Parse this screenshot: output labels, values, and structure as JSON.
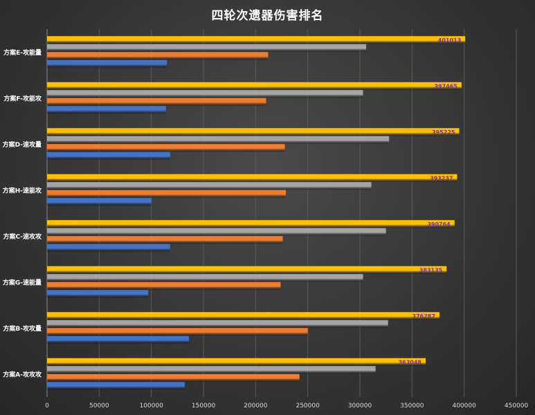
{
  "chart_data": {
    "type": "bar",
    "orientation": "horizontal",
    "title": "四轮次遗器伤害排名",
    "categories": [
      "方案E-攻能量",
      "方案F-攻能攻",
      "方案D-速攻量",
      "方案H-速能攻",
      "方案C-速攻攻",
      "方案G-速能量",
      "方案B-攻攻量",
      "方案A-攻攻攻"
    ],
    "series": [
      {
        "values": [
          401013,
          397465,
          395225,
          393237,
          390764,
          383135,
          376287,
          363048
        ],
        "color": "#ffc000",
        "show_labels": true
      },
      {
        "values": [
          306000,
          303000,
          328000,
          311000,
          325000,
          303000,
          327000,
          315000
        ],
        "color": "#a5a5a5"
      },
      {
        "values": [
          212000,
          210000,
          228000,
          229000,
          226000,
          224000,
          250000,
          242000
        ],
        "color": "#ed7d31"
      },
      {
        "values": [
          115000,
          114000,
          118000,
          100000,
          118000,
          97000,
          136000,
          132000
        ],
        "color": "#4472c4"
      }
    ],
    "xlim": [
      0,
      450000
    ],
    "xticks": [
      0,
      50000,
      100000,
      150000,
      200000,
      250000,
      300000,
      350000,
      400000,
      450000
    ],
    "grid": true,
    "legend": "none",
    "label_color": "#7030a0"
  }
}
